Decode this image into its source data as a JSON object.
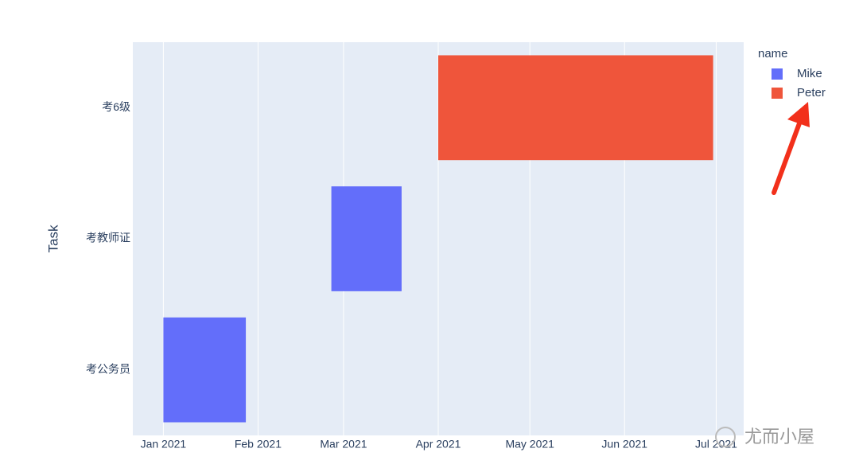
{
  "chart_data": {
    "type": "timeline",
    "y_label": "Task",
    "legend_title": "name",
    "watermark": "尤而小屋",
    "categories": [
      "考公务员",
      "考教师证",
      "考6级"
    ],
    "series": [
      {
        "name": "Mike",
        "color": "#636efa",
        "tasks": [
          "考公务员",
          "考教师证"
        ],
        "start": [
          "2021-01-01",
          "2021-02-25"
        ],
        "finish": [
          "2021-01-28",
          "2021-03-20"
        ]
      },
      {
        "name": "Peter",
        "color": "#ef553b",
        "tasks": [
          "考6级"
        ],
        "start": [
          "2021-04-01"
        ],
        "finish": [
          "2021-06-30"
        ]
      }
    ],
    "xlim": [
      "2020-12-22",
      "2021-07-10"
    ],
    "xticks": [
      {
        "value": "2021-01-01",
        "label": "Jan 2021"
      },
      {
        "value": "2021-02-01",
        "label": "Feb 2021"
      },
      {
        "value": "2021-03-01",
        "label": "Mar 2021"
      },
      {
        "value": "2021-04-01",
        "label": "Apr 2021"
      },
      {
        "value": "2021-05-01",
        "label": "May 2021"
      },
      {
        "value": "2021-06-01",
        "label": "Jun 2021"
      },
      {
        "value": "2021-07-01",
        "label": "Jul 2021"
      }
    ],
    "grid": true,
    "legend_position": "right"
  }
}
